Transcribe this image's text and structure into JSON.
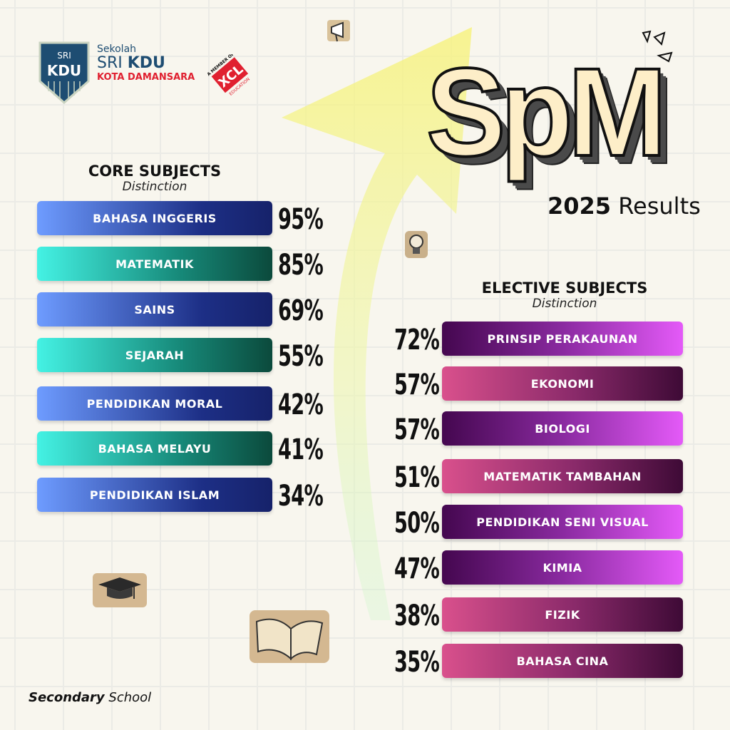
{
  "school": {
    "prefix": "Sekolah",
    "name_light": "SRI",
    "name_bold": "KDU",
    "location": "KOTA DAMANSARA",
    "shield_top": "SRI",
    "shield_main": "KDU",
    "member": "A MEMBER OF",
    "group": "XCL",
    "group_sub": "EDUCATION"
  },
  "title": {
    "main": "SpM",
    "year": "2025",
    "suffix": "Results"
  },
  "core": {
    "heading": "CORE SUBJECTS",
    "subheading": "Distinction",
    "items": [
      {
        "label": "BAHASA INGGERIS",
        "value": "95%",
        "style": "blue"
      },
      {
        "label": "MATEMATIK",
        "value": "85%",
        "style": "teal"
      },
      {
        "label": "SAINS",
        "value": "69%",
        "style": "blue"
      },
      {
        "label": "SEJARAH",
        "value": "55%",
        "style": "teal"
      },
      {
        "label": "PENDIDIKAN MORAL",
        "value": "42%",
        "style": "blue"
      },
      {
        "label": "BAHASA MELAYU",
        "value": "41%",
        "style": "teal"
      },
      {
        "label": "PENDIDIKAN ISLAM",
        "value": "34%",
        "style": "blue"
      }
    ]
  },
  "elective": {
    "heading": "ELECTIVE SUBJECTS",
    "subheading": "Distinction",
    "items": [
      {
        "label": "PRINSIP PERAKAUNAN",
        "value": "72%",
        "style": "purple"
      },
      {
        "label": "EKONOMI",
        "value": "57%",
        "style": "pink"
      },
      {
        "label": "BIOLOGI",
        "value": "57%",
        "style": "purple"
      },
      {
        "label": "MATEMATIK TAMBAHAN",
        "value": "51%",
        "style": "pink"
      },
      {
        "label": "PENDIDIKAN SENI VISUAL",
        "value": "50%",
        "style": "purple"
      },
      {
        "label": "KIMIA",
        "value": "47%",
        "style": "purple"
      },
      {
        "label": "FIZIK",
        "value": "38%",
        "style": "pink"
      },
      {
        "label": "BAHASA CINA",
        "value": "35%",
        "style": "pink"
      }
    ]
  },
  "footer": {
    "bold": "Secondary",
    "rest": "School"
  },
  "colors": {
    "navy": "#1e4d72",
    "red": "#e02030",
    "title_fill": "#fdeec8"
  },
  "icons": [
    "megaphone-icon",
    "lightbulb-icon",
    "graduation-cap-icon",
    "book-icon",
    "sparkle-icon"
  ]
}
